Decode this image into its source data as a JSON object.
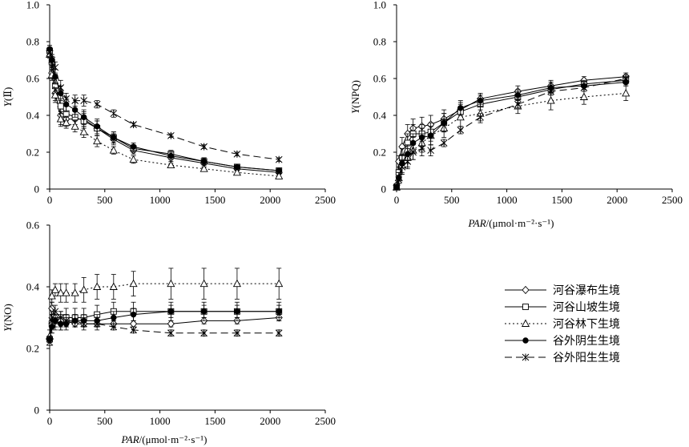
{
  "chart_data": [
    {
      "id": "yii",
      "type": "line",
      "ylabel_main": "Y",
      "ylabel_sub": "(Ⅱ)",
      "xlabel": "",
      "xlim": [
        0,
        2500
      ],
      "ylim": [
        0,
        1.0
      ],
      "xticks": [
        "0",
        "500",
        "1000",
        "1500",
        "2000",
        "2500"
      ],
      "yticks": [
        "0",
        "0.2",
        "0.4",
        "0.6",
        "0.8",
        "1.0"
      ],
      "x": [
        0,
        20,
        50,
        100,
        150,
        230,
        310,
        430,
        580,
        760,
        1100,
        1400,
        1700,
        2080
      ],
      "series": [
        {
          "style_key": "diamond",
          "values": [
            0.75,
            0.63,
            0.52,
            0.4,
            0.38,
            0.38,
            0.38,
            0.33,
            0.27,
            0.21,
            0.17,
            0.14,
            0.11,
            0.09
          ],
          "err": [
            0.02,
            0.03,
            0.04,
            0.05,
            0.04,
            0.04,
            0.04,
            0.04,
            0.03,
            0.02,
            0.02,
            0.02,
            0.01,
            0.01
          ]
        },
        {
          "style_key": "square",
          "values": [
            0.75,
            0.69,
            0.56,
            0.45,
            0.41,
            0.39,
            0.37,
            0.33,
            0.28,
            0.22,
            0.19,
            0.15,
            0.12,
            0.1
          ],
          "err": [
            0.02,
            0.03,
            0.04,
            0.04,
            0.04,
            0.04,
            0.04,
            0.04,
            0.03,
            0.02,
            0.02,
            0.02,
            0.01,
            0.01
          ]
        },
        {
          "style_key": "triangle",
          "values": [
            0.73,
            0.62,
            0.51,
            0.38,
            0.36,
            0.34,
            0.31,
            0.26,
            0.21,
            0.16,
            0.13,
            0.11,
            0.09,
            0.07
          ],
          "err": [
            0.02,
            0.03,
            0.04,
            0.04,
            0.03,
            0.03,
            0.03,
            0.03,
            0.02,
            0.02,
            0.01,
            0.01,
            0.01,
            0.01
          ]
        },
        {
          "style_key": "dot",
          "values": [
            0.76,
            0.7,
            0.61,
            0.52,
            0.46,
            0.43,
            0.39,
            0.34,
            0.28,
            0.23,
            0.18,
            0.15,
            0.12,
            0.1
          ],
          "err": [
            0.02,
            0.03,
            0.04,
            0.04,
            0.04,
            0.04,
            0.04,
            0.04,
            0.03,
            0.02,
            0.02,
            0.02,
            0.01,
            0.01
          ]
        },
        {
          "style_key": "star",
          "values": [
            0.74,
            0.7,
            0.66,
            0.55,
            0.49,
            0.48,
            0.48,
            0.46,
            0.41,
            0.35,
            0.29,
            0.23,
            0.19,
            0.16
          ],
          "err": [
            0.02,
            0.03,
            0.03,
            0.04,
            0.03,
            0.03,
            0.03,
            0.02,
            0.02,
            0.01,
            0.01,
            0.01,
            0.01,
            0.01
          ]
        }
      ]
    },
    {
      "id": "ynpq",
      "type": "line",
      "ylabel_main": "Y",
      "ylabel_sub": "(NPQ)",
      "xlabel_main": "PAR",
      "xlabel_unit": "/(μmol·m⁻²·s⁻¹)",
      "xlim": [
        0,
        2500
      ],
      "ylim": [
        0,
        1.0
      ],
      "xticks": [
        "0",
        "500",
        "1000",
        "1500",
        "2000",
        "2500"
      ],
      "yticks": [
        "0",
        "0.2",
        "0.4",
        "0.6",
        "0.8",
        "1.0"
      ],
      "x": [
        0,
        20,
        50,
        100,
        150,
        230,
        310,
        430,
        580,
        760,
        1100,
        1400,
        1700,
        2080
      ],
      "series": [
        {
          "style_key": "diamond",
          "values": [
            0.02,
            0.15,
            0.23,
            0.3,
            0.33,
            0.34,
            0.35,
            0.38,
            0.43,
            0.49,
            0.53,
            0.56,
            0.59,
            0.61
          ],
          "err": [
            0.01,
            0.03,
            0.05,
            0.05,
            0.05,
            0.05,
            0.05,
            0.05,
            0.04,
            0.03,
            0.03,
            0.03,
            0.02,
            0.02
          ]
        },
        {
          "style_key": "square",
          "values": [
            0.01,
            0.09,
            0.17,
            0.25,
            0.3,
            0.3,
            0.31,
            0.36,
            0.42,
            0.46,
            0.5,
            0.54,
            0.57,
            0.59
          ],
          "err": [
            0.01,
            0.03,
            0.05,
            0.05,
            0.05,
            0.05,
            0.05,
            0.05,
            0.04,
            0.03,
            0.03,
            0.03,
            0.02,
            0.02
          ]
        },
        {
          "style_key": "triangle",
          "values": [
            0.01,
            0.06,
            0.13,
            0.17,
            0.21,
            0.25,
            0.29,
            0.33,
            0.39,
            0.41,
            0.45,
            0.48,
            0.5,
            0.52
          ],
          "err": [
            0.01,
            0.03,
            0.05,
            0.05,
            0.05,
            0.05,
            0.05,
            0.05,
            0.05,
            0.05,
            0.04,
            0.05,
            0.04,
            0.04
          ]
        },
        {
          "style_key": "dot",
          "values": [
            0.01,
            0.06,
            0.14,
            0.19,
            0.25,
            0.28,
            0.29,
            0.36,
            0.44,
            0.48,
            0.51,
            0.55,
            0.56,
            0.58
          ],
          "err": [
            0.01,
            0.03,
            0.05,
            0.05,
            0.05,
            0.05,
            0.05,
            0.05,
            0.04,
            0.03,
            0.03,
            0.03,
            0.02,
            0.02
          ]
        },
        {
          "style_key": "star",
          "values": [
            0.01,
            0.05,
            0.12,
            0.15,
            0.2,
            0.22,
            0.21,
            0.25,
            0.32,
            0.39,
            0.46,
            0.53,
            0.55,
            0.6
          ],
          "err": [
            0.01,
            0.02,
            0.04,
            0.04,
            0.04,
            0.04,
            0.03,
            0.02,
            0.02,
            0.02,
            0.02,
            0.02,
            0.02,
            0.02
          ]
        }
      ]
    },
    {
      "id": "yno",
      "type": "line",
      "ylabel_main": "Y",
      "ylabel_sub": "(NO)",
      "xlabel_main": "PAR",
      "xlabel_unit": "/(μmol·m⁻²·s⁻¹)",
      "xlim": [
        0,
        2500
      ],
      "ylim": [
        0,
        0.6
      ],
      "xticks": [
        "0",
        "500",
        "1000",
        "1500",
        "2000",
        "2500"
      ],
      "yticks": [
        "0",
        "0.2",
        "0.4",
        "0.6"
      ],
      "x": [
        0,
        20,
        50,
        100,
        150,
        230,
        310,
        430,
        580,
        760,
        1100,
        1400,
        1700,
        2080
      ],
      "series": [
        {
          "style_key": "diamond",
          "values": [
            0.23,
            0.33,
            0.3,
            0.29,
            0.29,
            0.28,
            0.28,
            0.28,
            0.28,
            0.28,
            0.28,
            0.29,
            0.29,
            0.3
          ],
          "err": [
            0.01,
            0.02,
            0.02,
            0.02,
            0.02,
            0.01,
            0.01,
            0.01,
            0.01,
            0.01,
            0.01,
            0.01,
            0.01,
            0.01
          ]
        },
        {
          "style_key": "square",
          "values": [
            0.23,
            0.28,
            0.29,
            0.29,
            0.3,
            0.3,
            0.3,
            0.31,
            0.32,
            0.32,
            0.32,
            0.32,
            0.32,
            0.32
          ],
          "err": [
            0.01,
            0.03,
            0.03,
            0.03,
            0.03,
            0.03,
            0.03,
            0.03,
            0.03,
            0.03,
            0.03,
            0.03,
            0.03,
            0.03
          ]
        },
        {
          "style_key": "triangle",
          "values": [
            0.24,
            0.37,
            0.39,
            0.38,
            0.38,
            0.38,
            0.39,
            0.4,
            0.4,
            0.41,
            0.41,
            0.41,
            0.41,
            0.41
          ],
          "err": [
            0.02,
            0.02,
            0.02,
            0.03,
            0.03,
            0.03,
            0.04,
            0.04,
            0.04,
            0.04,
            0.05,
            0.05,
            0.05,
            0.05
          ]
        },
        {
          "style_key": "dot",
          "values": [
            0.23,
            0.27,
            0.29,
            0.28,
            0.28,
            0.29,
            0.29,
            0.29,
            0.3,
            0.31,
            0.32,
            0.32,
            0.32,
            0.32
          ],
          "err": [
            0.01,
            0.02,
            0.02,
            0.02,
            0.02,
            0.02,
            0.02,
            0.02,
            0.02,
            0.02,
            0.02,
            0.02,
            0.02,
            0.02
          ]
        },
        {
          "style_key": "star",
          "values": [
            0.22,
            0.29,
            0.32,
            0.3,
            0.29,
            0.29,
            0.28,
            0.28,
            0.27,
            0.26,
            0.25,
            0.25,
            0.25,
            0.25
          ],
          "err": [
            0.01,
            0.02,
            0.02,
            0.02,
            0.02,
            0.02,
            0.02,
            0.02,
            0.01,
            0.01,
            0.01,
            0.01,
            0.01,
            0.01
          ]
        }
      ]
    }
  ],
  "legend": {
    "placement": "bottom-right",
    "entries": [
      {
        "label": "河谷瀑布生境",
        "style_key": "diamond"
      },
      {
        "label": "河谷山坡生境",
        "style_key": "square"
      },
      {
        "label": "河谷林下生境",
        "style_key": "triangle"
      },
      {
        "label": "谷外阴生生境",
        "style_key": "dot"
      },
      {
        "label": "谷外阳生生境",
        "style_key": "star"
      }
    ]
  }
}
